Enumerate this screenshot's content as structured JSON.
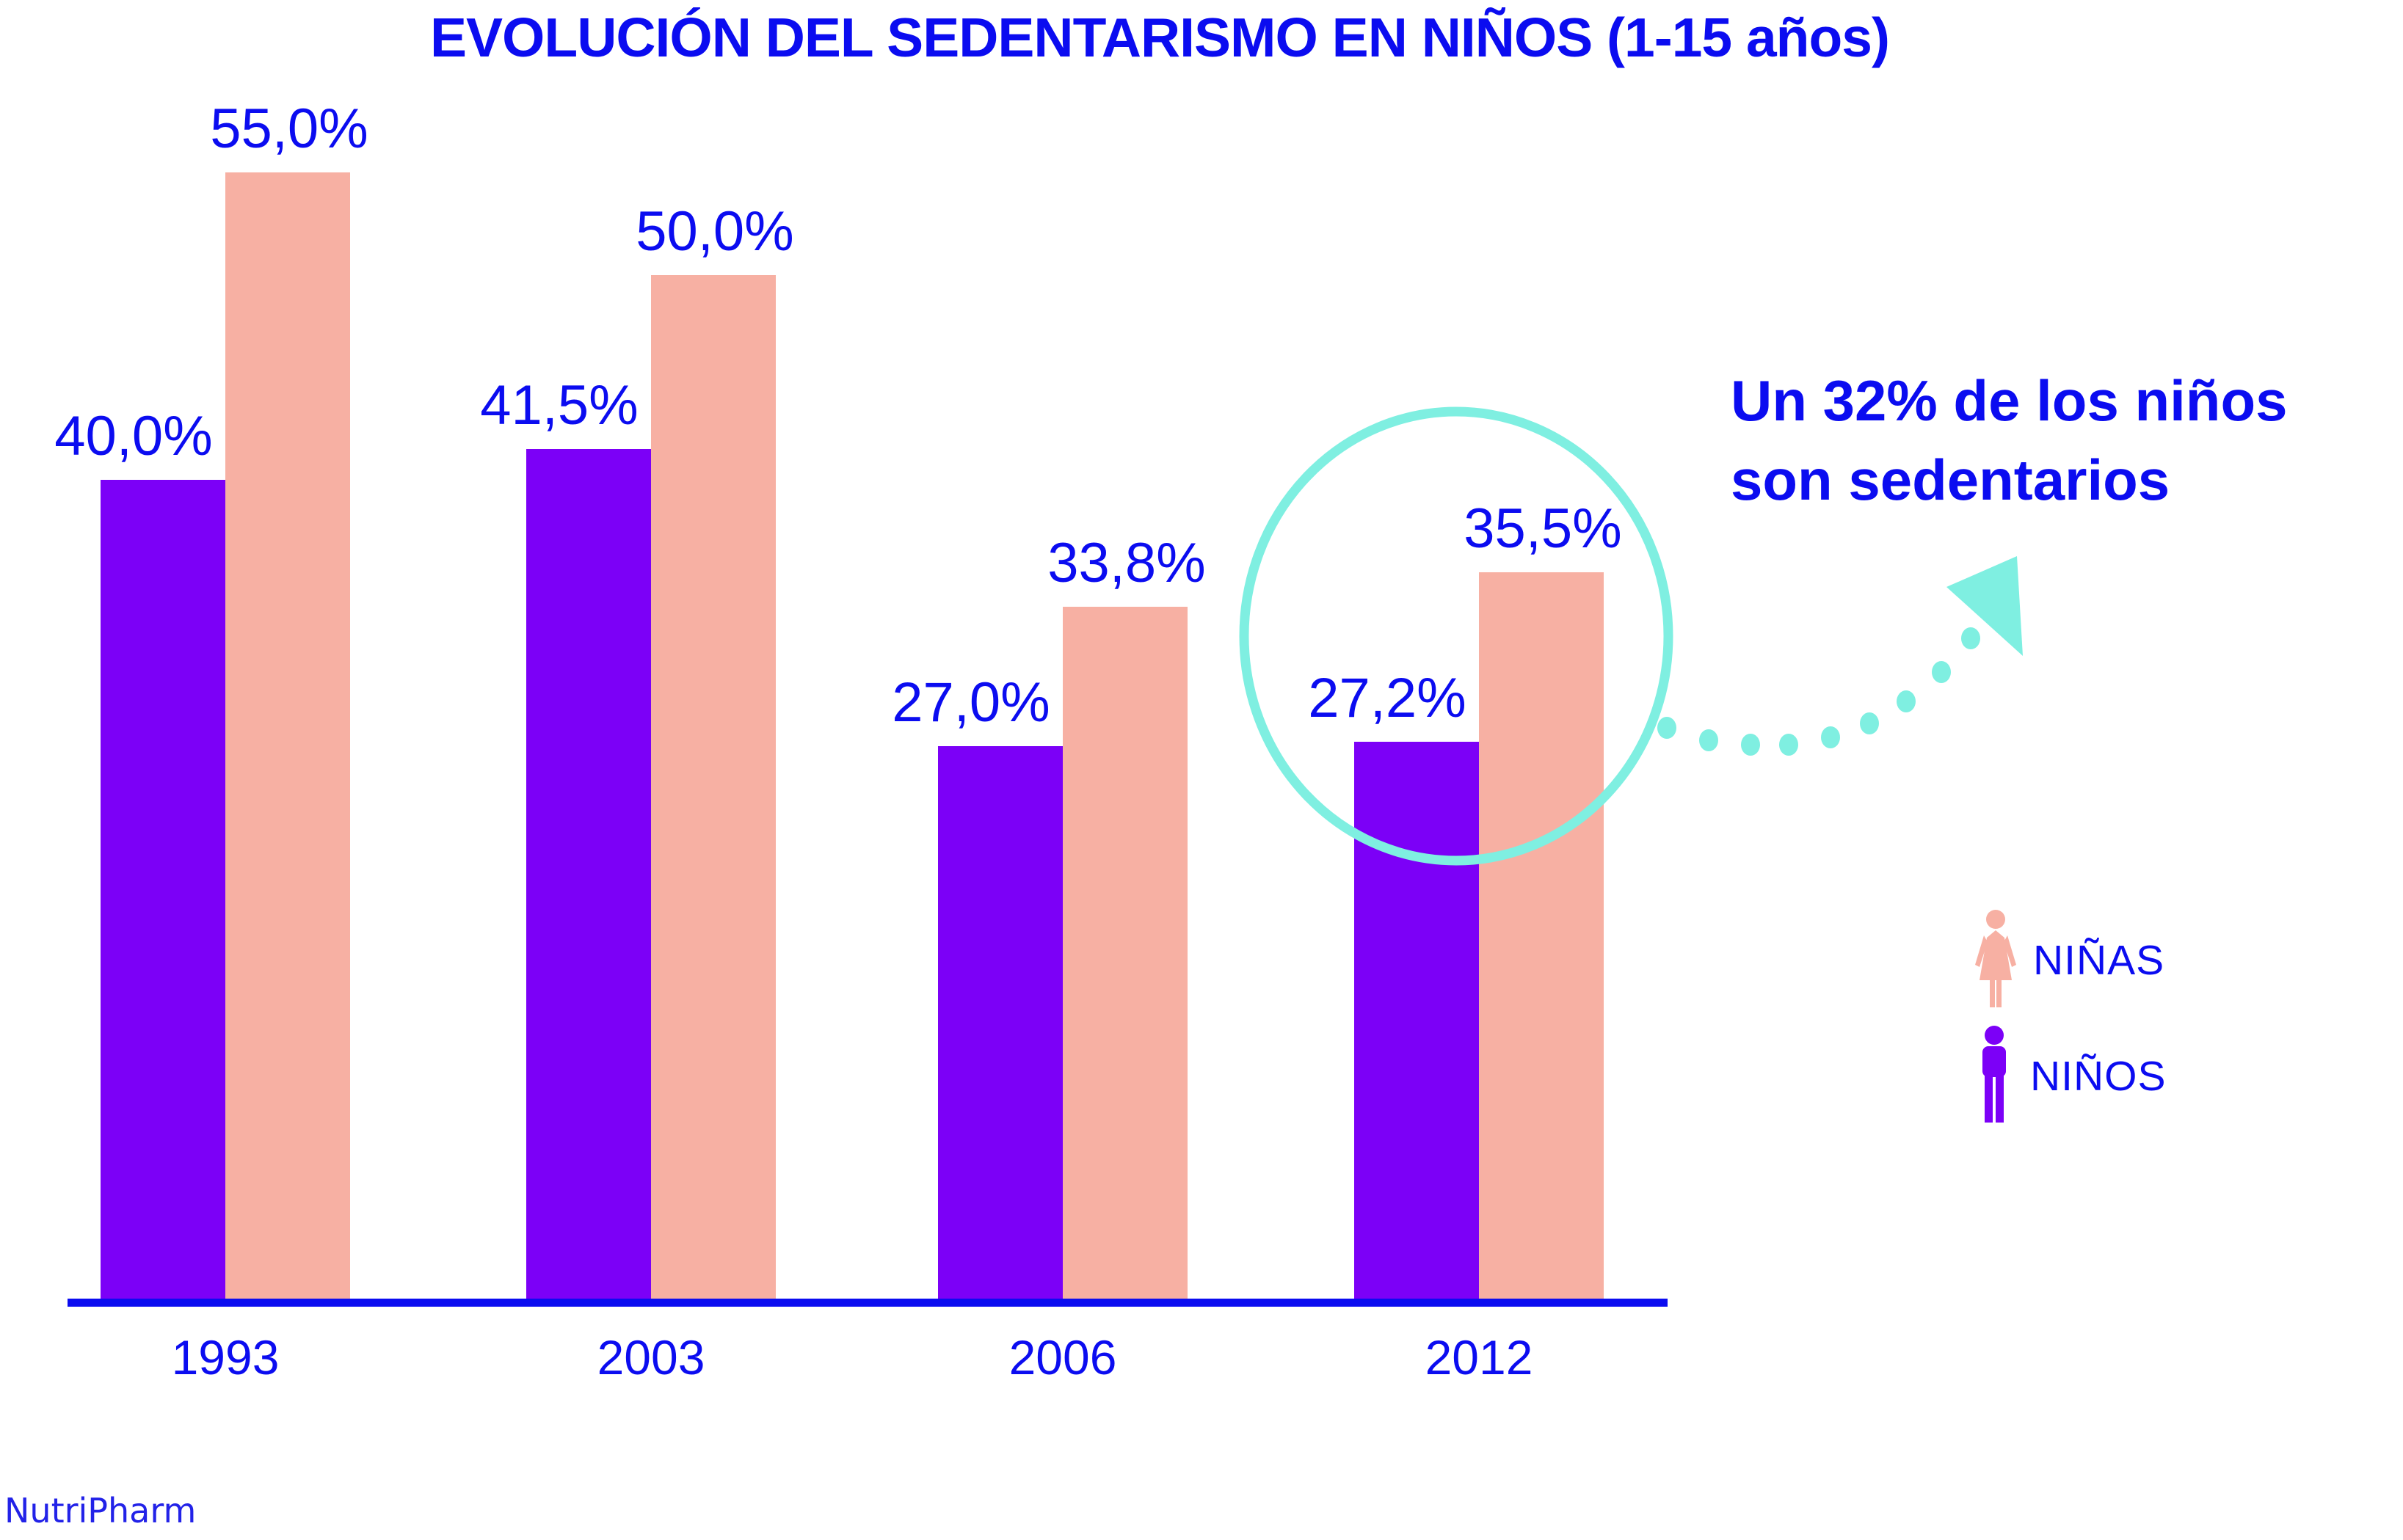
{
  "title": {
    "text": "EVOLUCIÓN DEL SEDENTARISMO EN NIÑOS (1-15 años)"
  },
  "source": {
    "text": "NutriPharm"
  },
  "annotation": {
    "line1": "Un 32% de los niños",
    "line2": "son sedentarios"
  },
  "legend": {
    "items": [
      {
        "label": "NIÑAS",
        "icon": "girl-icon",
        "color": "#f7b0a3"
      },
      {
        "label": "NIÑOS",
        "icon": "boy-icon",
        "color": "#7c00f7"
      }
    ]
  },
  "colors": {
    "text_blue": "#0b0cf0",
    "axis_blue": "#0b0cf0",
    "ninos_purple": "#7c00f7",
    "ninas_pink": "#f7b0a3",
    "highlight_teal": "#7fefe1",
    "background": "#ffffff"
  },
  "chart_data": {
    "type": "bar",
    "title": "EVOLUCIÓN DEL SEDENTARISMO EN NIÑOS (1-15 años)",
    "categories": [
      "1993",
      "2003",
      "2006",
      "2012"
    ],
    "series": [
      {
        "name": "NIÑOS",
        "color": "#7c00f7",
        "values": [
          40.0,
          41.5,
          27.0,
          27.2
        ],
        "labels": [
          "40,0%",
          "41,5%",
          "27,0%",
          "27,2%"
        ]
      },
      {
        "name": "NIÑAS",
        "color": "#f7b0a3",
        "values": [
          55.0,
          50.0,
          33.8,
          35.5
        ],
        "labels": [
          "55,0%",
          "50,0%",
          "33,8%",
          "35,5%"
        ]
      }
    ],
    "xlabel": "",
    "ylabel": "",
    "ylim": [
      0,
      60
    ],
    "grid": false,
    "value_format": "comma-decimal-percent",
    "legend_position": "right",
    "highlight": {
      "category": "2012",
      "shape": "circle-with-dotted-arrow",
      "note": "Un 32% de los niños son sedentarios"
    }
  }
}
